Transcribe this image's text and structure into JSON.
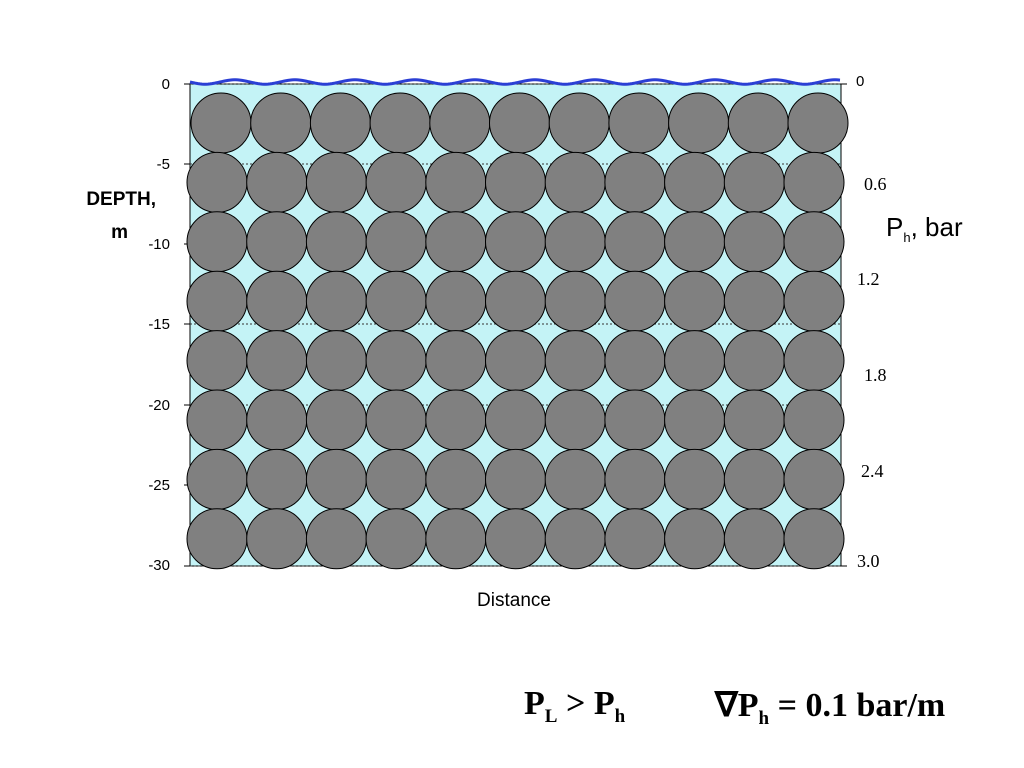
{
  "left_axis": {
    "label_line1": "DEPTH,",
    "label_line2": "m",
    "ticks": [
      "0",
      "-5",
      "-10",
      "-15",
      "-20",
      "-25",
      "-30"
    ]
  },
  "right_axis": {
    "label_main": "P",
    "label_sub": "h",
    "label_rest": ", bar",
    "ticks": [
      "0",
      "0.6",
      "1.2",
      "1.8",
      "2.4",
      "3.0"
    ]
  },
  "x_axis": {
    "label": "Distance"
  },
  "formulas": {
    "left": {
      "p": "P",
      "sub_l": "L",
      "gt": " > P",
      "sub_h": "h"
    },
    "right": {
      "nabla": "∇P",
      "sub_h": "h",
      "rest": " = 0.1 bar/m"
    }
  },
  "grid": {
    "rows": 8,
    "cols": 11
  },
  "colors": {
    "water": "#c4f3f6",
    "grain": "#808080",
    "surface": "#2b3fd4"
  }
}
